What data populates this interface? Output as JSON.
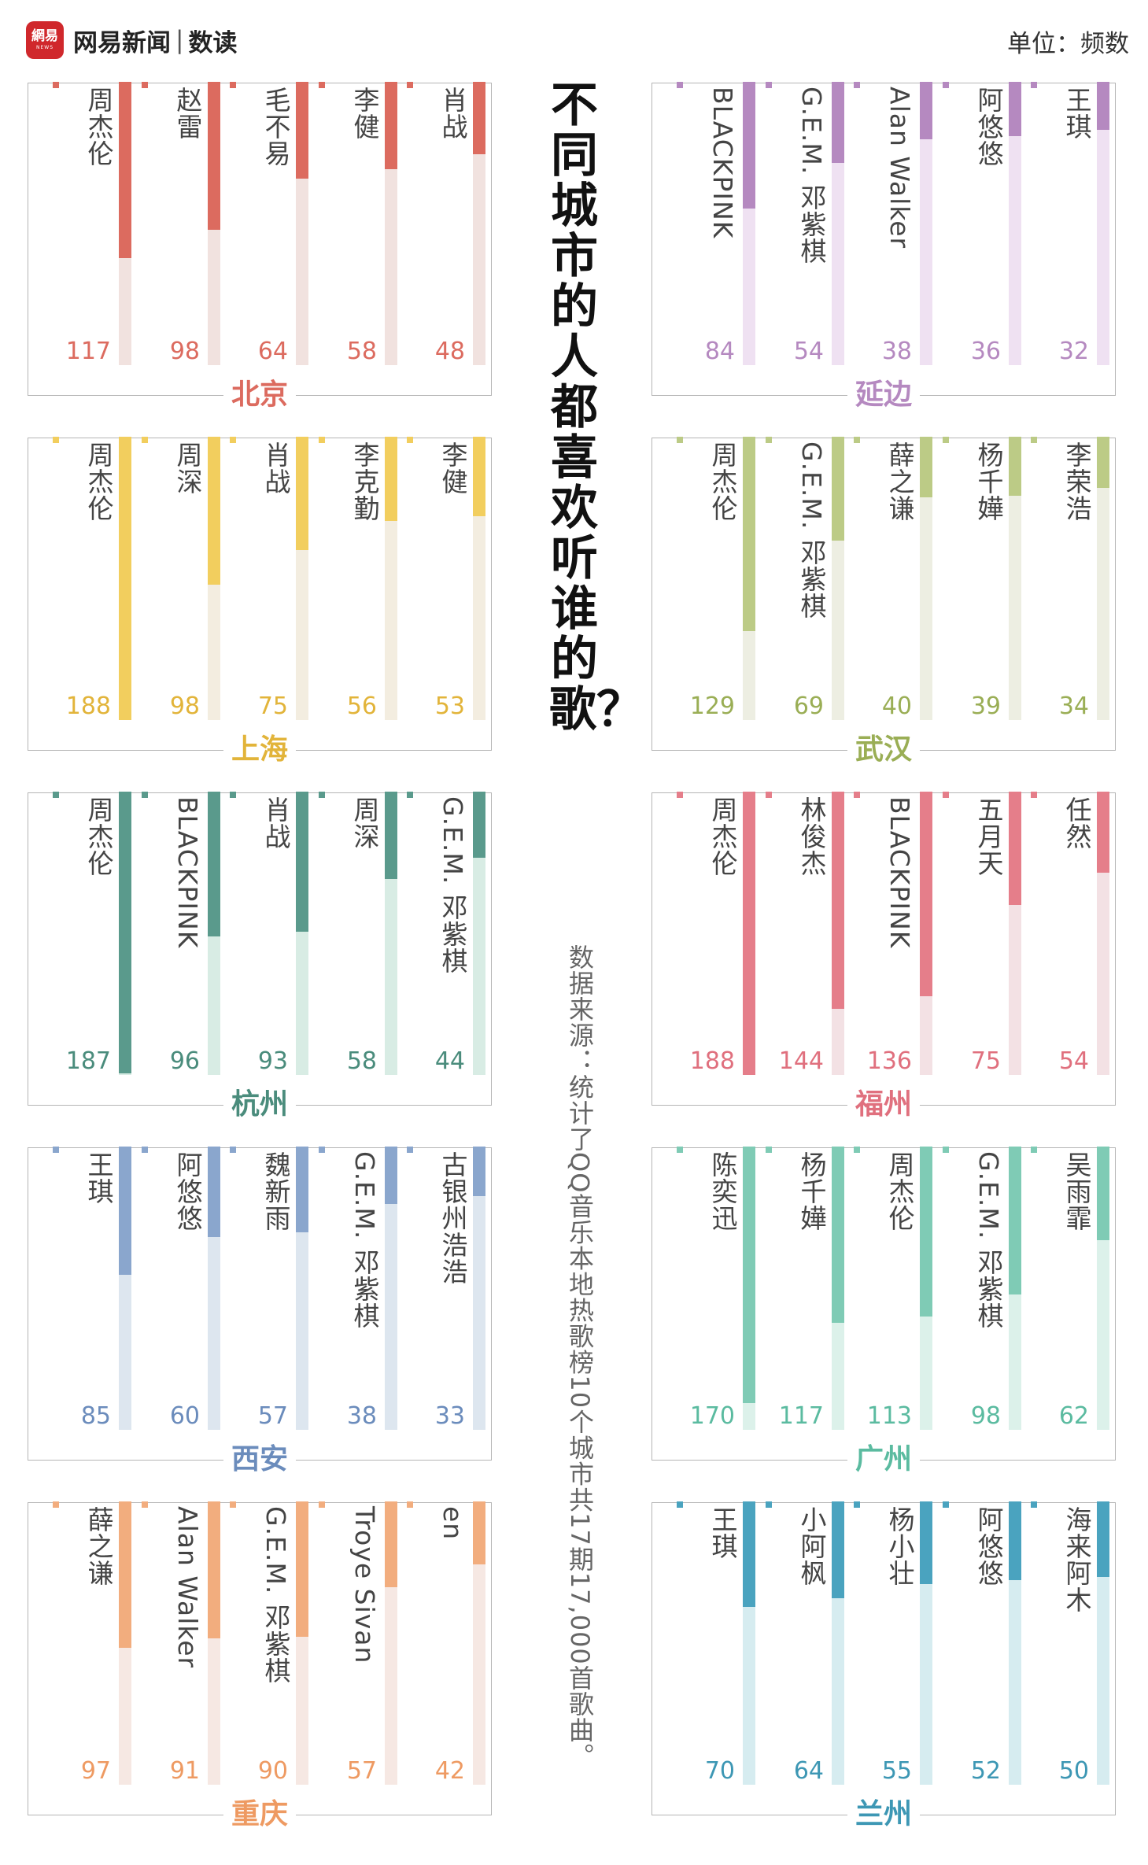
{
  "header": {
    "logo_badge": "網易",
    "logo_small": "NEWS",
    "brand": "网易新闻",
    "separator": "|",
    "sub": "数读",
    "unit": "单位：频数"
  },
  "title": "不同城市的人都喜欢听谁的歌？",
  "source": "数据来源：统计了QQ音乐本地热歌榜10个城市共17期17,000首歌曲。",
  "chart_data": [
    {
      "type": "bar",
      "city": "北京",
      "color": "#dc6b5f",
      "light": "#f1e2df",
      "text_color": "#dc6b5f",
      "categories": [
        "周杰伦",
        "赵雷",
        "毛不易",
        "李健",
        "肖战"
      ],
      "values": [
        117,
        98,
        64,
        58,
        48
      ]
    },
    {
      "type": "bar",
      "city": "延边",
      "color": "#b589c0",
      "light": "#efe1f2",
      "text_color": "#b589c0",
      "categories": [
        "BLACKPINK",
        "G.E.M. 邓紫棋",
        "Alan Walker",
        "阿悠悠",
        "王琪"
      ],
      "values": [
        84,
        54,
        38,
        36,
        32
      ]
    },
    {
      "type": "bar",
      "city": "上海",
      "color": "#f2ce5e",
      "light": "#f3ede0",
      "text_color": "#e2b43a",
      "categories": [
        "周杰伦",
        "周深",
        "肖战",
        "李克勤",
        "李健"
      ],
      "values": [
        188,
        98,
        75,
        56,
        53
      ]
    },
    {
      "type": "bar",
      "city": "武汉",
      "color": "#bccb86",
      "light": "#edeee2",
      "text_color": "#9aae55",
      "categories": [
        "周杰伦",
        "G.E.M. 邓紫棋",
        "薛之谦",
        "杨千嬅",
        "李荣浩"
      ],
      "values": [
        129,
        69,
        40,
        39,
        34
      ]
    },
    {
      "type": "bar",
      "city": "杭州",
      "color": "#5a9a8c",
      "light": "#d8ece4",
      "text_color": "#4a8c7c",
      "categories": [
        "周杰伦",
        "BLACKPINK",
        "肖战",
        "周深",
        "G.E.M. 邓紫棋"
      ],
      "values": [
        187,
        96,
        93,
        58,
        44
      ]
    },
    {
      "type": "bar",
      "city": "福州",
      "color": "#e57e8a",
      "light": "#f3e1e4",
      "text_color": "#e0707e",
      "categories": [
        "周杰伦",
        "林俊杰",
        "BLACKPINK",
        "五月天",
        "任然"
      ],
      "values": [
        188,
        144,
        136,
        75,
        54
      ]
    },
    {
      "type": "bar",
      "city": "西安",
      "color": "#8aa6cd",
      "light": "#dde6ef",
      "text_color": "#6b8cbc",
      "categories": [
        "王琪",
        "阿悠悠",
        "魏新雨",
        "G.E.M. 邓紫棋",
        "古银州浩浩"
      ],
      "values": [
        85,
        60,
        57,
        38,
        33
      ]
    },
    {
      "type": "bar",
      "city": "广州",
      "color": "#7fcbb5",
      "light": "#dcf1ea",
      "text_color": "#5bbba0",
      "categories": [
        "陈奕迅",
        "杨千嬅",
        "周杰伦",
        "G.E.M. 邓紫棋",
        "吴雨霏"
      ],
      "values": [
        170,
        117,
        113,
        98,
        62
      ]
    },
    {
      "type": "bar",
      "city": "重庆",
      "color": "#f2ad7e",
      "light": "#f6e8e3",
      "text_color": "#ee9a62",
      "categories": [
        "薛之谦",
        "Alan Walker",
        "G.E.M. 邓紫棋",
        "Troye Sivan",
        "en"
      ],
      "values": [
        97,
        91,
        90,
        57,
        42
      ]
    },
    {
      "type": "bar",
      "city": "兰州",
      "color": "#4aa3bf",
      "light": "#d6ecf0",
      "text_color": "#3d97b4",
      "categories": [
        "王琪",
        "小阿枫",
        "杨小壮",
        "阿悠悠",
        "海来阿木"
      ],
      "values": [
        70,
        64,
        55,
        52,
        50
      ]
    }
  ]
}
